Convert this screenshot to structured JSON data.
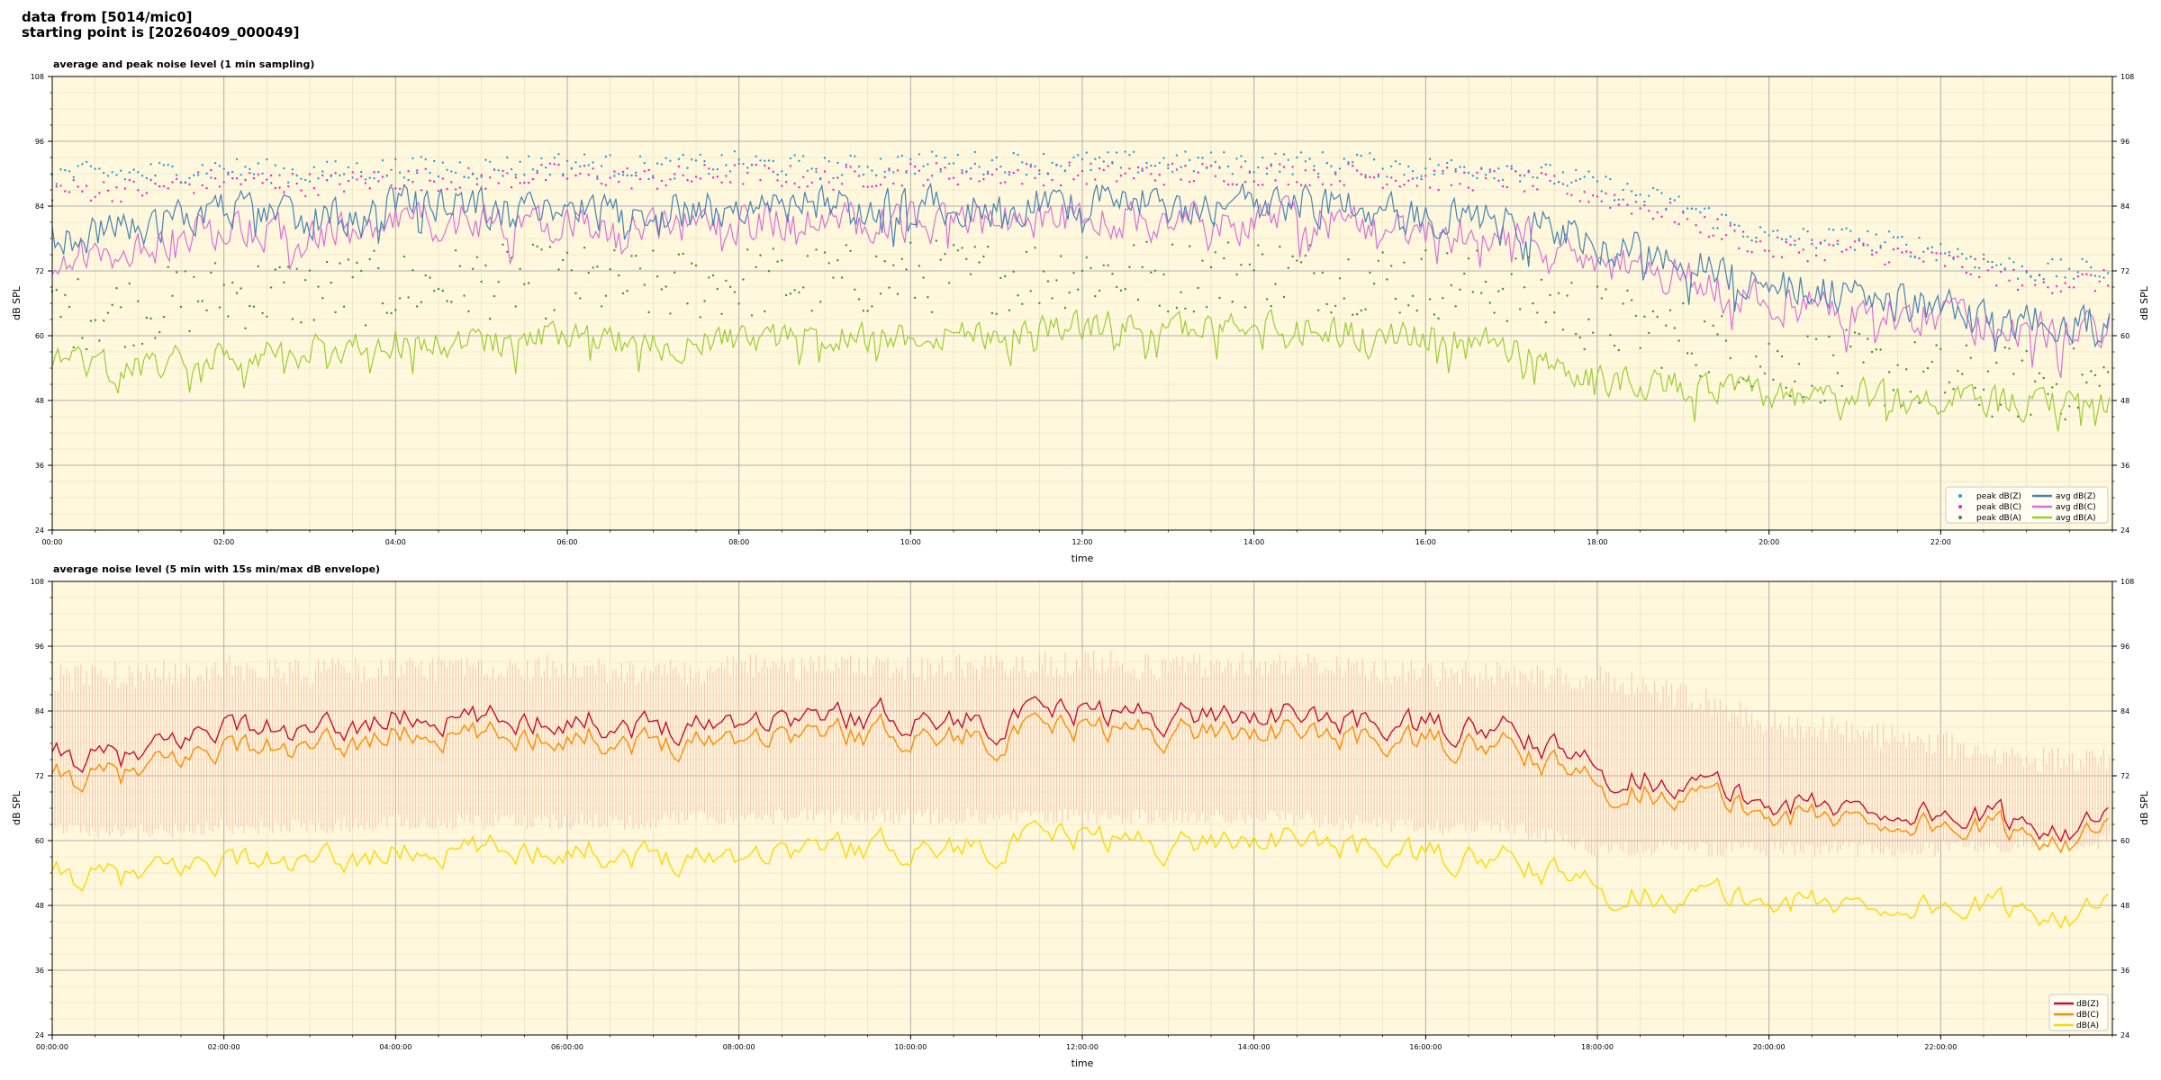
{
  "header": {
    "line1": "data from [5014/mic0]",
    "line2": "starting point is [20260409_000049]"
  },
  "colors": {
    "plot_bg": "#fff8dc",
    "peak_z": "#1f9ee0",
    "peak_c": "#ee22cc",
    "peak_a": "#3a8f3a",
    "avg_z": "#4682b4",
    "avg_c": "#da70d6",
    "avg_a": "#9acd32",
    "env": "#f4b0a0",
    "bot_z": "#c8102e",
    "bot_c": "#ff8c00",
    "bot_a": "#ffd700"
  },
  "chart_data": [
    {
      "type": "line",
      "title": "average and peak noise level (1 min sampling)",
      "xlabel": "time",
      "ylabel": "dB SPL",
      "xlim_hours": [
        0,
        24
      ],
      "ylim": [
        24,
        108
      ],
      "yticks": [
        "24",
        "36",
        "48",
        "60",
        "72",
        "84",
        "96",
        "108"
      ],
      "xticks": [
        "00:00",
        "02:00",
        "04:00",
        "06:00",
        "08:00",
        "10:00",
        "12:00",
        "14:00",
        "16:00",
        "18:00",
        "20:00",
        "22:00"
      ],
      "grid": true,
      "legend_position": "lower-right",
      "legend": [
        "peak dB(Z)",
        "peak dB(C)",
        "peak dB(A)",
        "avg dB(Z)",
        "avg dB(C)",
        "avg dB(A)"
      ],
      "series": [
        {
          "name": "avg dB(Z)",
          "kind": "line",
          "t": [
            0,
            1,
            2,
            3,
            4,
            5,
            6,
            7,
            8,
            9,
            10,
            11,
            12,
            13,
            14,
            15,
            16,
            17,
            18,
            19,
            20,
            21,
            22,
            23,
            24
          ],
          "values": [
            78,
            80,
            84,
            82,
            84,
            84,
            84,
            83,
            84,
            84,
            84,
            84,
            85,
            84,
            85,
            84,
            82,
            82,
            77,
            74,
            69,
            68,
            65,
            63,
            63
          ]
        },
        {
          "name": "avg dB(C)",
          "kind": "line",
          "t": [
            0,
            1,
            2,
            3,
            4,
            5,
            6,
            7,
            8,
            9,
            10,
            11,
            12,
            13,
            14,
            15,
            16,
            17,
            18,
            19,
            20,
            21,
            22,
            23,
            24
          ],
          "values": [
            74,
            77,
            80,
            78,
            81,
            81,
            81,
            80,
            81,
            81,
            81,
            81,
            82,
            81,
            82,
            81,
            79,
            79,
            74,
            71,
            66,
            65,
            63,
            61,
            61
          ]
        },
        {
          "name": "avg dB(A)",
          "kind": "line",
          "t": [
            0,
            1,
            2,
            3,
            4,
            5,
            6,
            7,
            8,
            9,
            10,
            11,
            12,
            13,
            14,
            15,
            16,
            17,
            18,
            19,
            20,
            21,
            22,
            23,
            24
          ],
          "values": [
            55,
            54,
            57,
            57,
            59,
            59,
            60,
            58,
            59,
            60,
            60,
            61,
            62,
            61,
            63,
            61,
            60,
            58,
            52,
            51,
            49,
            49,
            48,
            47,
            48
          ]
        },
        {
          "name": "peak dB(Z)",
          "kind": "scatter",
          "t": [
            0,
            1,
            2,
            3,
            4,
            5,
            6,
            7,
            8,
            9,
            10,
            11,
            12,
            13,
            14,
            15,
            16,
            17,
            18,
            19,
            20,
            21,
            22,
            23,
            24
          ],
          "values": [
            90,
            90,
            91,
            90,
            91,
            91,
            92,
            91,
            92,
            91,
            92,
            92,
            92,
            92,
            92,
            92,
            91,
            91,
            88,
            84,
            78,
            78,
            76,
            72,
            72
          ]
        },
        {
          "name": "peak dB(C)",
          "kind": "scatter",
          "t": [
            0,
            1,
            2,
            3,
            4,
            5,
            6,
            7,
            8,
            9,
            10,
            11,
            12,
            13,
            14,
            15,
            16,
            17,
            18,
            19,
            20,
            21,
            22,
            23,
            24
          ],
          "values": [
            87,
            87,
            89,
            88,
            89,
            89,
            90,
            89,
            90,
            89,
            90,
            90,
            90,
            90,
            90,
            90,
            89,
            89,
            86,
            82,
            76,
            76,
            74,
            70,
            70
          ]
        },
        {
          "name": "peak dB(A)",
          "kind": "scatter",
          "t": [
            0,
            1,
            2,
            3,
            4,
            5,
            6,
            7,
            8,
            9,
            10,
            11,
            12,
            13,
            14,
            15,
            16,
            17,
            18,
            19,
            20,
            21,
            22,
            23,
            24
          ],
          "values": [
            64,
            65,
            68,
            68,
            69,
            70,
            70,
            69,
            70,
            70,
            71,
            71,
            72,
            71,
            72,
            71,
            70,
            69,
            63,
            60,
            55,
            54,
            52,
            51,
            51
          ]
        }
      ]
    },
    {
      "type": "area",
      "title": "average noise level (5 min with 15s min/max dB envelope)",
      "xlabel": "time",
      "ylabel": "dB SPL",
      "xlim_hours": [
        0,
        24
      ],
      "ylim": [
        24,
        108
      ],
      "yticks": [
        "24",
        "36",
        "48",
        "60",
        "72",
        "84",
        "96",
        "108"
      ],
      "xticks": [
        "00:00:00",
        "02:00:00",
        "04:00:00",
        "06:00:00",
        "08:00:00",
        "10:00:00",
        "12:00:00",
        "14:00:00",
        "16:00:00",
        "18:00:00",
        "20:00:00",
        "22:00:00"
      ],
      "grid": true,
      "legend_position": "lower-right",
      "legend": [
        "dB(Z)",
        "dB(C)",
        "dB(A)"
      ],
      "envelope": {
        "t": [
          0,
          1,
          2,
          3,
          4,
          5,
          6,
          7,
          8,
          9,
          10,
          11,
          12,
          13,
          14,
          15,
          16,
          17,
          18,
          19,
          20,
          21,
          22,
          23,
          24
        ],
        "min": [
          63,
          63,
          64,
          64,
          65,
          65,
          65,
          65,
          66,
          66,
          66,
          66,
          66,
          66,
          66,
          65,
          64,
          64,
          60,
          60,
          60,
          60,
          60,
          61,
          61
        ],
        "max": [
          90,
          91,
          92,
          91,
          92,
          92,
          92,
          91,
          92,
          92,
          92,
          92,
          93,
          92,
          93,
          92,
          91,
          91,
          90,
          87,
          82,
          80,
          78,
          75,
          75
        ]
      },
      "series": [
        {
          "name": "dB(Z)",
          "t": [
            0,
            1,
            2,
            3,
            4,
            5,
            6,
            7,
            8,
            9,
            10,
            11,
            12,
            13,
            14,
            15,
            16,
            17,
            18,
            19,
            20,
            21,
            22,
            23,
            24
          ],
          "values": [
            75,
            75,
            82,
            79,
            83,
            82,
            83,
            81,
            83,
            83,
            83,
            82,
            84,
            83,
            84,
            82,
            81,
            80,
            73,
            71,
            67,
            66,
            65,
            63,
            63
          ]
        },
        {
          "name": "dB(C)",
          "t": [
            0,
            1,
            2,
            3,
            4,
            5,
            6,
            7,
            8,
            9,
            10,
            11,
            12,
            13,
            14,
            15,
            16,
            17,
            18,
            19,
            20,
            21,
            22,
            23,
            24
          ],
          "values": [
            71,
            72,
            78,
            76,
            80,
            79,
            80,
            78,
            80,
            80,
            80,
            79,
            81,
            80,
            81,
            79,
            78,
            77,
            70,
            69,
            65,
            64,
            63,
            61,
            61
          ]
        },
        {
          "name": "dB(A)",
          "t": [
            0,
            1,
            2,
            3,
            4,
            5,
            6,
            7,
            8,
            9,
            10,
            11,
            12,
            13,
            14,
            15,
            16,
            17,
            18,
            19,
            20,
            21,
            22,
            23,
            24
          ],
          "values": [
            53,
            53,
            57,
            55,
            58,
            58,
            59,
            57,
            58,
            59,
            59,
            59,
            61,
            59,
            61,
            59,
            57,
            56,
            51,
            50,
            49,
            48,
            48,
            47,
            47
          ]
        }
      ]
    }
  ]
}
